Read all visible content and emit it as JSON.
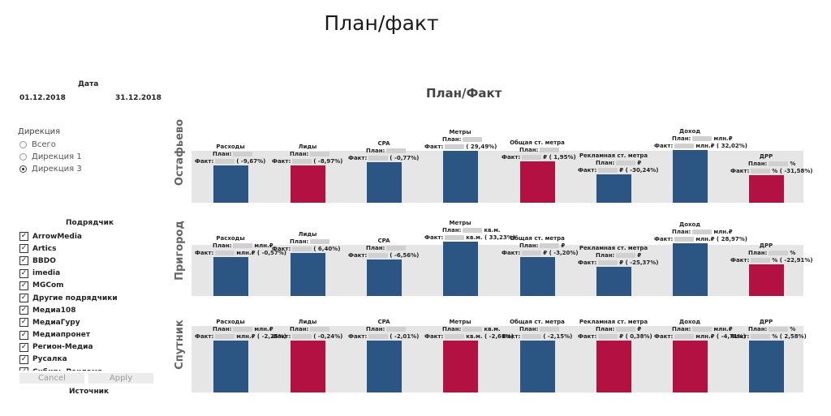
{
  "page_title": "План/факт",
  "filters": {
    "date_label": "Дата",
    "date_from": "01.12.2018",
    "date_to": "31.12.2018",
    "direction_title": "Дирекция",
    "directions": [
      {
        "label": "Всего",
        "selected": false
      },
      {
        "label": "Дирекция 1",
        "selected": false
      },
      {
        "label": "Дирекция 3",
        "selected": true
      }
    ],
    "contractor_title": "Подрядчик",
    "contractors": [
      {
        "label": "ArrowMedia",
        "checked": true
      },
      {
        "label": "Artics",
        "checked": true
      },
      {
        "label": "BBDO",
        "checked": true
      },
      {
        "label": "imedia",
        "checked": true
      },
      {
        "label": "MGCom",
        "checked": true
      },
      {
        "label": "Другие подрядчики",
        "checked": true
      },
      {
        "label": "Медиа108",
        "checked": true
      },
      {
        "label": "МедиаГуру",
        "checked": true
      },
      {
        "label": "Медиапронет",
        "checked": true
      },
      {
        "label": "Регион-Медиа",
        "checked": true
      },
      {
        "label": "Русалка",
        "checked": true
      },
      {
        "label": "Сибирь-Реклама",
        "checked": true
      }
    ],
    "cancel_label": "Cancel",
    "apply_label": "Apply",
    "source_label": "Источник"
  },
  "chart": {
    "title": "План/Факт",
    "rows": [
      {
        "name": "Остафьево",
        "metrics": [
          {
            "name": "Расходы",
            "plan_unit": "",
            "fact_unit": "",
            "pct": "-9,67%",
            "color": "blue",
            "height_pct": 72
          },
          {
            "name": "Лиды",
            "plan_unit": "",
            "fact_unit": "",
            "pct": "-8,97%",
            "color": "red",
            "height_pct": 72
          },
          {
            "name": "CPA",
            "plan_unit": "",
            "fact_unit": "",
            "pct": "-0,77%",
            "color": "blue",
            "height_pct": 78
          },
          {
            "name": "Метры",
            "plan_unit": "",
            "fact_unit": "",
            "pct": "29,49%",
            "color": "blue",
            "height_pct": 100
          },
          {
            "name": "Общая ст. метра",
            "plan_unit": "",
            "fact_unit": "₽",
            "pct": "1,95%",
            "color": "red",
            "height_pct": 80
          },
          {
            "name": "Рекламная ст. метра",
            "plan_unit": "₽",
            "fact_unit": "₽",
            "pct": "-30,24%",
            "color": "blue",
            "height_pct": 54
          },
          {
            "name": "Доход",
            "plan_unit": "млн.₽",
            "fact_unit": "млн.₽",
            "pct": "32,02%",
            "color": "blue",
            "height_pct": 102
          },
          {
            "name": "ДРР",
            "plan_unit": "%",
            "fact_unit": "%",
            "pct": "-31,58%",
            "color": "red",
            "height_pct": 53
          }
        ]
      },
      {
        "name": "Пригород",
        "metrics": [
          {
            "name": "Расходы",
            "plan_unit": "млн.₽",
            "fact_unit": "млн.₽",
            "pct": "-0,57%",
            "color": "blue",
            "height_pct": 75
          },
          {
            "name": "Лиды",
            "plan_unit": "",
            "fact_unit": "",
            "pct": "6,40%",
            "color": "blue",
            "height_pct": 83
          },
          {
            "name": "CPA",
            "plan_unit": "",
            "fact_unit": "",
            "pct": "-6,56%",
            "color": "blue",
            "height_pct": 71
          },
          {
            "name": "Метры",
            "plan_unit": "кв.м.",
            "fact_unit": "кв.м.",
            "pct": "33,23%",
            "color": "blue",
            "height_pct": 104
          },
          {
            "name": "Общая ст. метра",
            "plan_unit": "₽",
            "fact_unit": "₽",
            "pct": "-3,20%",
            "color": "blue",
            "height_pct": 75
          },
          {
            "name": "Рекламная ст. метра",
            "plan_unit": "₽",
            "fact_unit": "₽",
            "pct": "-25,37%",
            "color": "blue",
            "height_pct": 57
          },
          {
            "name": "Доход",
            "plan_unit": "млн.₽",
            "fact_unit": "млн.₽",
            "pct": "28,97%",
            "color": "blue",
            "height_pct": 102
          },
          {
            "name": "ДРР",
            "plan_unit": "%",
            "fact_unit": "%",
            "pct": "-22,91%",
            "color": "red",
            "height_pct": 61
          }
        ]
      },
      {
        "name": "Спутник",
        "metrics": [
          {
            "name": "Расходы",
            "plan_unit": "млн.₽",
            "fact_unit": "млн.₽",
            "pct": "-2,25%",
            "color": "blue",
            "height_pct": 100
          },
          {
            "name": "Лиды",
            "plan_unit": "",
            "fact_unit": "",
            "pct": "-0,24%",
            "color": "red",
            "height_pct": 100
          },
          {
            "name": "CPA",
            "plan_unit": "",
            "fact_unit": "",
            "pct": "-2,01%",
            "color": "blue",
            "height_pct": 100
          },
          {
            "name": "Метры",
            "plan_unit": "кв.м.",
            "fact_unit": "кв.м.",
            "pct": "-2,61%",
            "color": "red",
            "height_pct": 100
          },
          {
            "name": "Общая ст. метра",
            "plan_unit": "",
            "fact_unit": "",
            "pct": "-2,15%",
            "color": "blue",
            "height_pct": 100
          },
          {
            "name": "Рекламная ст. метра",
            "plan_unit": "₽",
            "fact_unit": "₽",
            "pct": "0,38%",
            "color": "red",
            "height_pct": 100
          },
          {
            "name": "Доход",
            "plan_unit": "млн.₽",
            "fact_unit": "млн.₽",
            "pct": "-4,71%",
            "color": "red",
            "height_pct": 100
          },
          {
            "name": "ДРР",
            "plan_unit": "%",
            "fact_unit": "%",
            "pct": "2,58%",
            "color": "blue",
            "height_pct": 100
          }
        ]
      }
    ],
    "plan_prefix": "План:",
    "fact_prefix": "Факт:"
  },
  "colors": {
    "blue": "#2b5583",
    "red": "#b31142",
    "band": "#e6e6e6"
  }
}
